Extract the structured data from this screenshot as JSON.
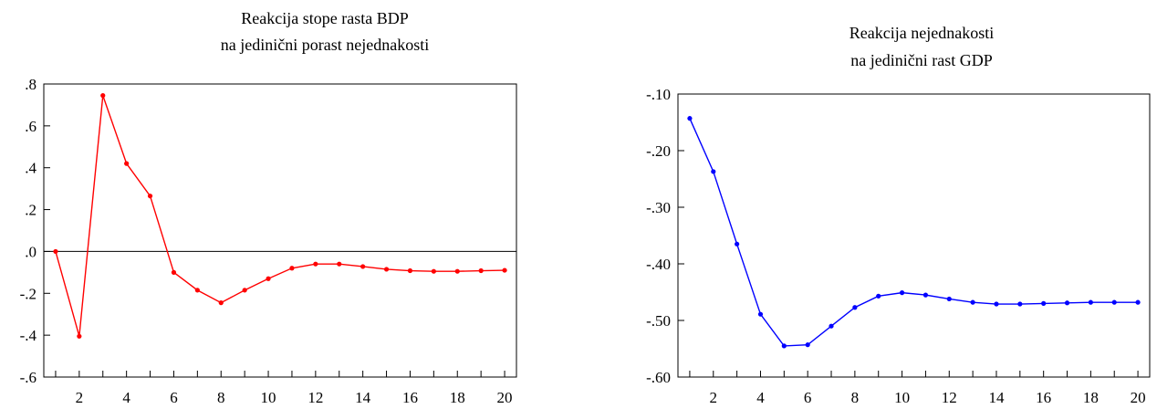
{
  "chart_data": [
    {
      "type": "line",
      "title_lines": [
        "Reakcija stope rasta BDP",
        "na jedinični porast nejednakosti"
      ],
      "xlabel": "",
      "ylabel": "",
      "x": [
        1,
        2,
        3,
        4,
        5,
        6,
        7,
        8,
        9,
        10,
        11,
        12,
        13,
        14,
        15,
        16,
        17,
        18,
        19,
        20
      ],
      "series": [
        {
          "color": "#ff0000",
          "values": [
            0.0,
            -0.405,
            0.745,
            0.42,
            0.265,
            -0.1,
            -0.185,
            -0.245,
            -0.185,
            -0.13,
            -0.08,
            -0.06,
            -0.06,
            -0.072,
            -0.085,
            -0.092,
            -0.095,
            -0.095,
            -0.092,
            -0.09
          ]
        }
      ],
      "xlim": [
        0.5,
        20.5
      ],
      "ylim": [
        -0.6,
        0.8
      ],
      "x_ticks": [
        2,
        4,
        6,
        8,
        10,
        12,
        14,
        16,
        18,
        20
      ],
      "x_tick_labels": [
        "2",
        "4",
        "6",
        "8",
        "10",
        "12",
        "14",
        "16",
        "18",
        "20"
      ],
      "y_ticks": [
        0.8,
        0.6,
        0.4,
        0.2,
        0.0,
        -0.2,
        -0.4,
        -0.6
      ],
      "y_tick_labels": [
        ".8",
        ".6",
        ".4",
        ".2",
        ".0",
        "-.2",
        "-.4",
        "-.6"
      ],
      "zero_line": true,
      "grid": false
    },
    {
      "type": "line",
      "title_lines": [
        "Reakcija nejednakosti",
        "na jedinični rast GDP"
      ],
      "xlabel": "",
      "ylabel": "",
      "x": [
        1,
        2,
        3,
        4,
        5,
        6,
        7,
        8,
        9,
        10,
        11,
        12,
        13,
        14,
        15,
        16,
        17,
        18,
        19,
        20
      ],
      "series": [
        {
          "color": "#0000ff",
          "values": [
            -0.143,
            -0.237,
            -0.365,
            -0.489,
            -0.545,
            -0.543,
            -0.51,
            -0.477,
            -0.457,
            -0.451,
            -0.455,
            -0.462,
            -0.468,
            -0.471,
            -0.471,
            -0.47,
            -0.469,
            -0.468,
            -0.468,
            -0.468
          ]
        }
      ],
      "xlim": [
        0.5,
        20.5
      ],
      "ylim": [
        -0.6,
        -0.1
      ],
      "x_ticks": [
        2,
        4,
        6,
        8,
        10,
        12,
        14,
        16,
        18,
        20
      ],
      "x_tick_labels": [
        "2",
        "4",
        "6",
        "8",
        "10",
        "12",
        "14",
        "16",
        "18",
        "20"
      ],
      "y_ticks": [
        -0.1,
        -0.2,
        -0.3,
        -0.4,
        -0.5,
        -0.6
      ],
      "y_tick_labels": [
        "-.10",
        "-.20",
        "-.30",
        "-.40",
        "-.50",
        "-.60"
      ],
      "zero_line": false,
      "grid": false
    }
  ]
}
